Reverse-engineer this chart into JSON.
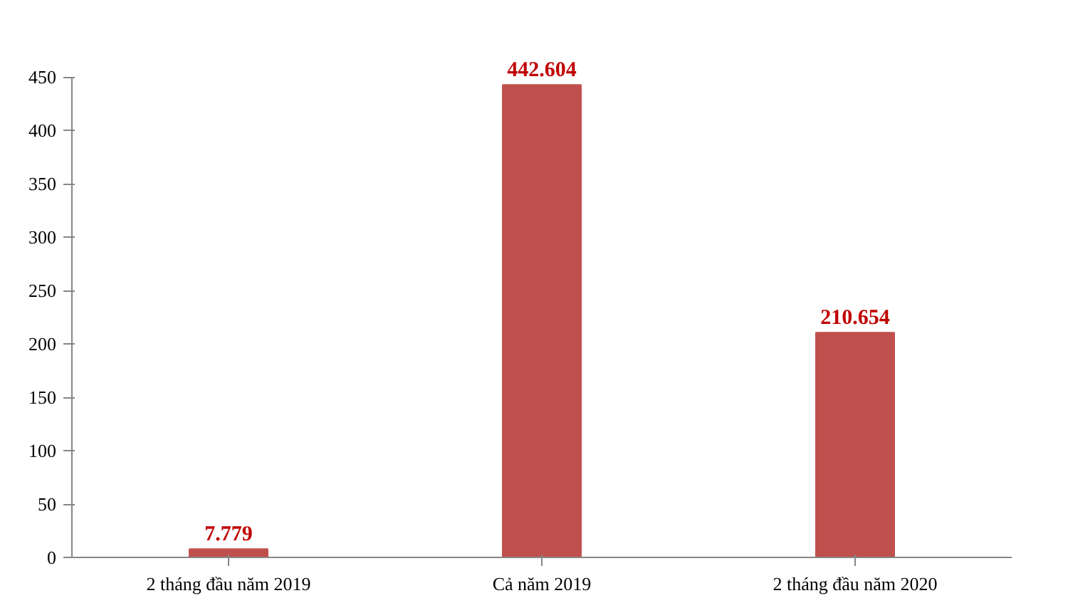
{
  "chart_data": {
    "type": "bar",
    "categories": [
      "2 tháng đầu năm 2019",
      "Cả năm 2019",
      "2 tháng đầu năm 2020"
    ],
    "series": [
      {
        "color": "#c0504d",
        "values": [
          7.779,
          442.604,
          210.654
        ]
      }
    ],
    "value_labels": [
      "7.779",
      "442.604",
      "210.654"
    ],
    "ylim": [
      0,
      450
    ],
    "yticks": [
      0,
      50,
      100,
      150,
      200,
      250,
      300,
      350,
      400,
      450
    ],
    "grid": false
  }
}
